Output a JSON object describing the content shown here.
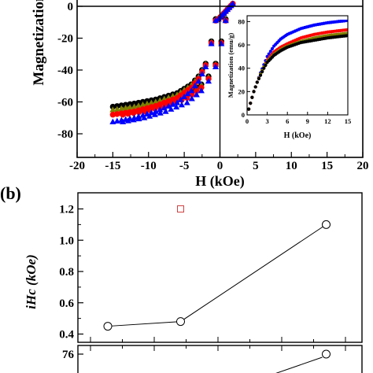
{
  "panel_b_label": "(b)",
  "chart_data": [
    {
      "type": "scatter",
      "title": "",
      "xlabel": "H (kOe)",
      "ylabel": "Magnetization",
      "xlim": [
        -20,
        20
      ],
      "ylim": [
        -85,
        0
      ],
      "x_ticks": [
        -20,
        -15,
        -10,
        -5,
        0,
        5,
        10,
        15,
        20
      ],
      "y_ticks": [
        0,
        -20,
        -40,
        -60,
        -80
      ],
      "series": [
        {
          "color": "#000000",
          "marker": "circle",
          "x": [
            -15,
            -12,
            -9,
            -6,
            -4,
            -3,
            -2,
            -1.2,
            -0.6
          ],
          "y": [
            -63,
            -61,
            -58.5,
            -54.5,
            -49,
            -44,
            -36,
            -22,
            -8
          ]
        },
        {
          "color": "#808000",
          "marker": "triangle",
          "x": [
            -15,
            -12,
            -9,
            -6,
            -4,
            -3,
            -2,
            -1.2,
            -0.6
          ],
          "y": [
            -65,
            -63,
            -60,
            -55.5,
            -49.5,
            -44.5,
            -36.5,
            -22.5,
            -8.5
          ]
        },
        {
          "color": "#ff0000",
          "marker": "circle",
          "x": [
            -15,
            -12,
            -9,
            -6,
            -4,
            -3,
            -2,
            -1.2,
            -0.6
          ],
          "y": [
            -68,
            -66,
            -62.5,
            -57.5,
            -51,
            -45.5,
            -37,
            -23,
            -9
          ]
        },
        {
          "color": "#0000ff",
          "marker": "triangle",
          "x": [
            -15,
            -12,
            -9,
            -6,
            -4,
            -3,
            -2,
            -1.2,
            -0.6
          ],
          "y": [
            -72.5,
            -70,
            -66,
            -60.5,
            -53,
            -47,
            -38,
            -23.5,
            -9
          ]
        }
      ],
      "inset": {
        "xlabel": "H (kOe)",
        "ylabel": "Magnetization (emu/g)",
        "xlim": [
          0,
          15
        ],
        "ylim": [
          0,
          85
        ],
        "x_ticks": [
          0,
          3,
          6,
          9,
          12,
          15
        ],
        "y_ticks": [
          0,
          20,
          40,
          60,
          80
        ],
        "series": [
          {
            "color": "#0000ff",
            "x": [
              0,
              0.5,
              1,
              1.5,
              2,
              2.5,
              3,
              4,
              5,
              6,
              8,
              10,
              12,
              15
            ],
            "y": [
              0,
              10,
              20,
              28,
              36,
              43,
              50,
              59,
              65,
              69,
              74,
              77,
              79,
              81
            ]
          },
          {
            "color": "#ff0000",
            "x": [
              0,
              0.5,
              1,
              1.5,
              2,
              2.5,
              3,
              4,
              5,
              6,
              8,
              10,
              12,
              15
            ],
            "y": [
              0,
              10,
              20,
              28,
              35,
              41,
              47,
              54,
              58,
              61,
              66,
              69,
              71,
              73
            ]
          },
          {
            "color": "#808000",
            "x": [
              0,
              0.5,
              1,
              1.5,
              2,
              2.5,
              3,
              4,
              5,
              6,
              8,
              10,
              12,
              15
            ],
            "y": [
              0,
              10,
              20,
              28,
              35,
              41,
              46,
              52,
              56,
              59,
              63,
              66,
              68,
              70
            ]
          },
          {
            "color": "#000000",
            "x": [
              0,
              0.5,
              1,
              1.5,
              2,
              2.5,
              3,
              4,
              5,
              6,
              8,
              10,
              12,
              15
            ],
            "y": [
              0,
              10,
              20,
              28,
              34,
              40,
              45,
              51,
              55,
              58,
              62,
              64,
              66,
              68
            ]
          }
        ]
      }
    },
    {
      "type": "line",
      "title": "",
      "xlabel": "",
      "ylabel": "iHc (kOe)",
      "ylim": [
        0.38,
        1.32
      ],
      "y_ticks": [
        1.2,
        1.0,
        0.8,
        0.6,
        0.4
      ],
      "series": [
        {
          "color": "#000000",
          "marker": "circle-open",
          "points": [
            {
              "x": 1,
              "y": 0.45
            },
            {
              "x": 2,
              "y": 0.48
            },
            {
              "x": 4,
              "y": 1.1
            }
          ]
        },
        {
          "color": "#d04040",
          "marker": "square-open",
          "points": [
            {
              "x": 2,
              "y": 1.2
            }
          ]
        }
      ]
    },
    {
      "type": "line",
      "title": "",
      "xlabel": "",
      "ylabel": "",
      "y_ticks": [
        76
      ],
      "series": [
        {
          "color": "#000000",
          "marker": "circle-open",
          "points": [
            {
              "x": 4,
              "y": 76
            }
          ]
        }
      ]
    }
  ]
}
